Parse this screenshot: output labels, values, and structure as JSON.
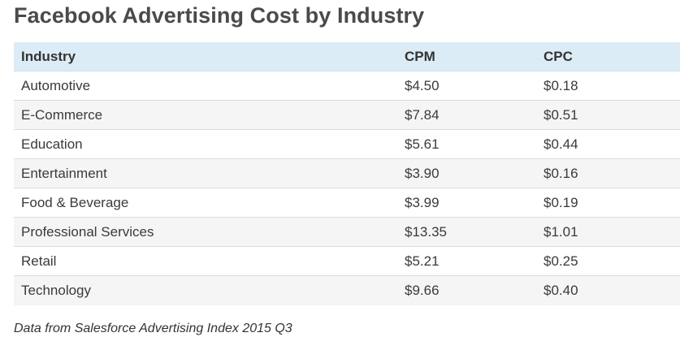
{
  "title": "Facebook Advertising Cost by Industry",
  "table": {
    "headers": {
      "industry": "Industry",
      "cpm": "CPM",
      "cpc": "CPC"
    },
    "rows": [
      {
        "industry": "Automotive",
        "cpm": "$4.50",
        "cpc": "$0.18"
      },
      {
        "industry": "E-Commerce",
        "cpm": "$7.84",
        "cpc": "$0.51"
      },
      {
        "industry": "Education",
        "cpm": "$5.61",
        "cpc": "$0.44"
      },
      {
        "industry": "Entertainment",
        "cpm": "$3.90",
        "cpc": "$0.16"
      },
      {
        "industry": "Food & Beverage",
        "cpm": "$3.99",
        "cpc": "$0.19"
      },
      {
        "industry": "Professional Services",
        "cpm": "$13.35",
        "cpc": "$1.01"
      },
      {
        "industry": "Retail",
        "cpm": "$5.21",
        "cpc": "$0.25"
      },
      {
        "industry": "Technology",
        "cpm": "$9.66",
        "cpc": "$0.40"
      }
    ]
  },
  "footnote": "Data from Salesforce Advertising Index 2015 Q3",
  "colors": {
    "header_background": "#dcecf6",
    "stripe_background": "#f5f5f5",
    "title_text": "#4a4a4a"
  }
}
